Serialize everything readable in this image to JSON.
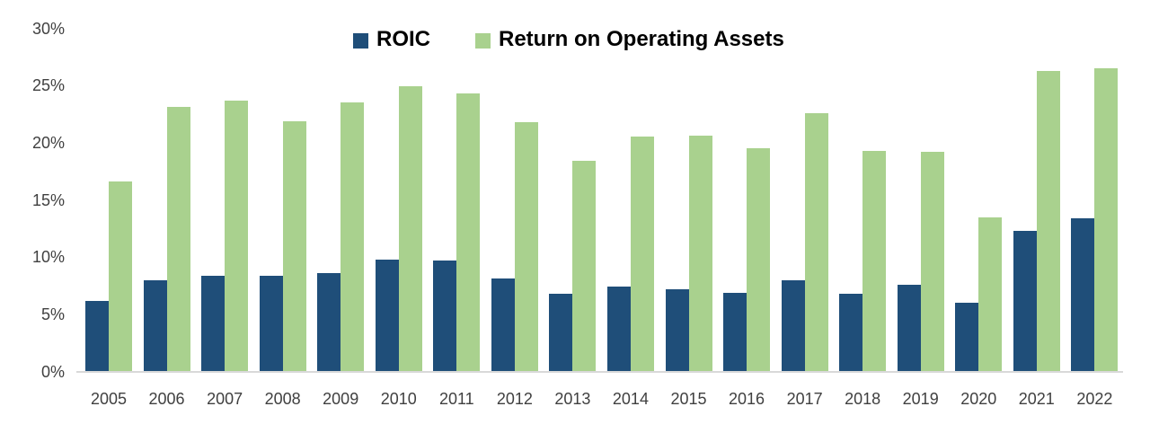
{
  "chart_data": {
    "type": "bar",
    "title": "",
    "categories": [
      "2005",
      "2006",
      "2007",
      "2008",
      "2009",
      "2010",
      "2011",
      "2012",
      "2013",
      "2014",
      "2015",
      "2016",
      "2017",
      "2018",
      "2019",
      "2020",
      "2021",
      "2022"
    ],
    "series": [
      {
        "name": "ROIC",
        "slug": "roic",
        "color": "#1F4E79",
        "values": [
          6.2,
          8.0,
          8.4,
          8.4,
          8.6,
          9.8,
          9.7,
          8.1,
          6.8,
          7.4,
          7.2,
          6.9,
          8.0,
          6.8,
          7.6,
          6.0,
          12.3,
          13.4
        ]
      },
      {
        "name": "Return on Operating Assets",
        "slug": "roa",
        "color": "#A9D18E",
        "values": [
          16.6,
          23.1,
          23.7,
          21.9,
          23.5,
          24.9,
          24.3,
          21.8,
          18.4,
          20.5,
          20.6,
          19.5,
          22.6,
          19.3,
          19.2,
          13.5,
          26.3,
          26.5
        ]
      }
    ],
    "xlabel": "",
    "ylabel": "",
    "ylim": [
      0,
      30
    ],
    "yticks": [
      {
        "value": 0,
        "label": "0%"
      },
      {
        "value": 5,
        "label": "5%"
      },
      {
        "value": 10,
        "label": "10%"
      },
      {
        "value": 15,
        "label": "15%"
      },
      {
        "value": 20,
        "label": "20%"
      },
      {
        "value": 25,
        "label": "25%"
      },
      {
        "value": 30,
        "label": "30%"
      }
    ],
    "grid": false,
    "legend_position": "top-center",
    "colors": {
      "axis_line": "#D9D9D9",
      "tick_text": "#404040",
      "legend_text": "#000000",
      "background": "#FFFFFF"
    }
  }
}
